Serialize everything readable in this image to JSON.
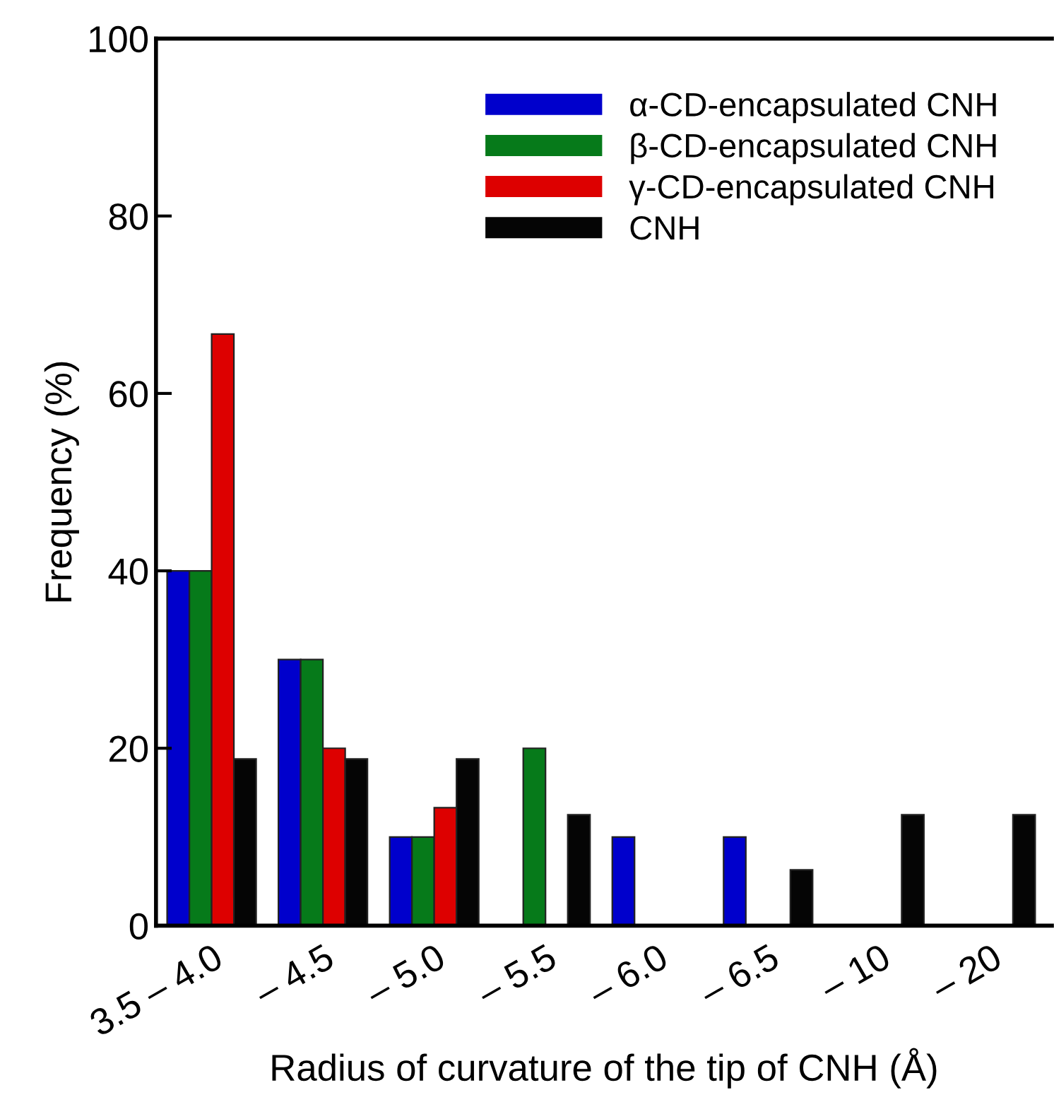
{
  "chart_data": {
    "type": "bar",
    "xlabel": "Radius of curvature of the tip of CNH (Å)",
    "ylabel": "Frequency (%)",
    "categories": [
      "3.5 – 4.0",
      "– 4.5",
      "– 5.0",
      "– 5.5",
      "– 6.0",
      "– 6.5",
      "– 10",
      "– 20"
    ],
    "series": [
      {
        "name": "α-CD-encapsulated CNH",
        "color": "#0000cc",
        "values": [
          40,
          30,
          10,
          null,
          10,
          10,
          null,
          null
        ]
      },
      {
        "name": "β-CD-encapsulated CNH",
        "color": "#067a1a",
        "values": [
          40,
          30,
          10,
          20,
          null,
          null,
          null,
          null
        ]
      },
      {
        "name": "γ-CD-encapsulated CNH",
        "color": "#dd0000",
        "values": [
          66.7,
          20,
          13.3,
          null,
          null,
          null,
          null,
          null
        ]
      },
      {
        "name": "CNH",
        "color": "#050505",
        "values": [
          18.8,
          18.8,
          18.8,
          12.5,
          null,
          6.3,
          12.5,
          12.5
        ]
      }
    ],
    "ylim": [
      0,
      100
    ],
    "yticks": [
      0,
      20,
      40,
      60,
      80,
      100
    ],
    "grid": false,
    "legend": "top right"
  }
}
